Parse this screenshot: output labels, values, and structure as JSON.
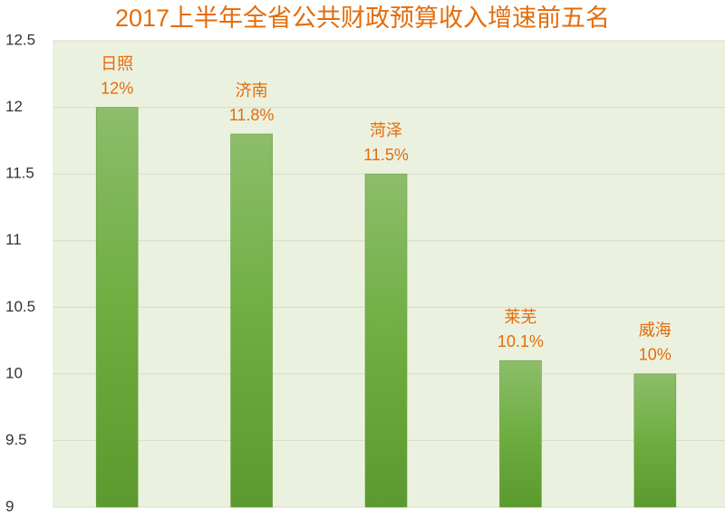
{
  "chart_data": {
    "type": "bar",
    "title": "2017上半年全省公共财政预算收入增速前五名",
    "categories": [
      "日照",
      "济南",
      "菏泽",
      "莱芜",
      "威海"
    ],
    "values": [
      12,
      11.8,
      11.5,
      10.1,
      10
    ],
    "value_labels": [
      "12%",
      "11.8%",
      "11.5%",
      "10.1%",
      "10%"
    ],
    "color": "#6aaa3c",
    "ylim": [
      9,
      12.5
    ],
    "yticks": [
      9,
      9.5,
      10,
      10.5,
      11,
      11.5,
      12,
      12.5
    ],
    "grid": true
  }
}
